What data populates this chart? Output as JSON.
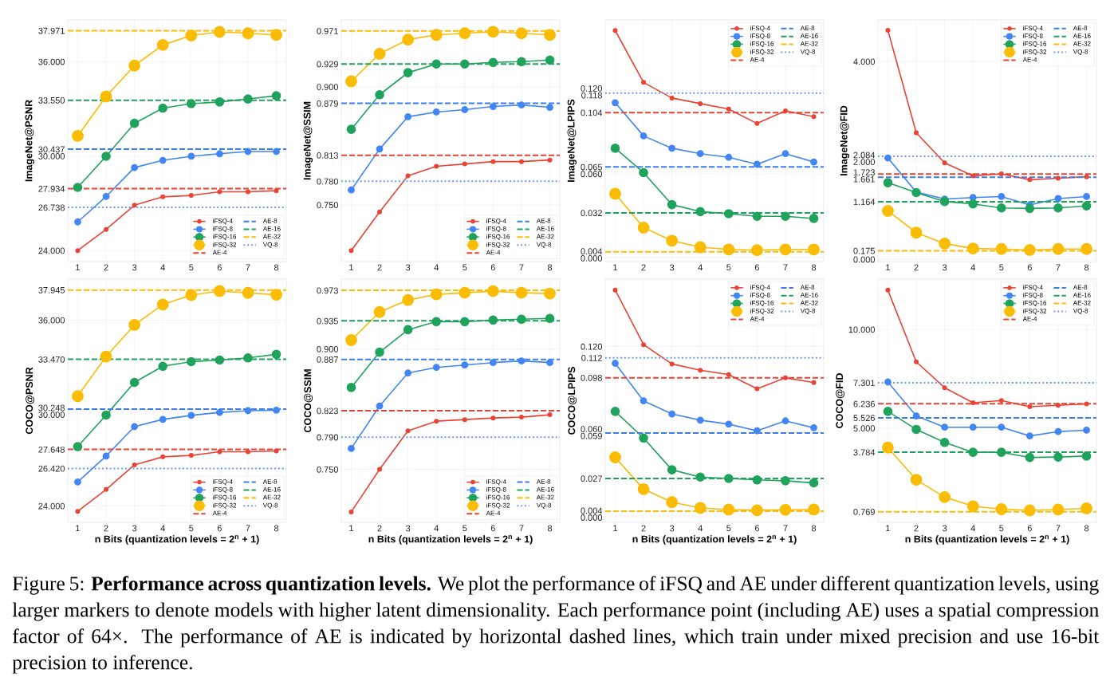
{
  "chart_data": [
    {
      "type": "line",
      "ylabel": "ImageNet@PSNR",
      "x": [
        1,
        2,
        3,
        4,
        5,
        6,
        7,
        8
      ],
      "xlim": [
        0.65,
        8.35
      ],
      "xticks": [
        1,
        2,
        3,
        4,
        5,
        6,
        7,
        8
      ],
      "ylim": [
        23.3,
        38.65
      ],
      "yticks": [
        {
          "value": 24,
          "label": "24.000"
        },
        {
          "value": 26.738,
          "label": "26.738"
        },
        {
          "value": 27.934,
          "label": "27.934"
        },
        {
          "value": 30,
          "label": "30.000"
        },
        {
          "value": 30.437,
          "label": "30.437"
        },
        {
          "value": 33.55,
          "label": "33.550"
        },
        {
          "value": 36,
          "label": "36.000"
        },
        {
          "value": 37.971,
          "label": "37.971"
        }
      ],
      "grid": true,
      "legend": "bottom right",
      "marker": "circle",
      "line_style": "solid",
      "series": [
        {
          "name": "iFSQ-4",
          "color": "#ea4335",
          "values": [
            24.0,
            25.34,
            26.88,
            27.41,
            27.5,
            27.73,
            27.73,
            27.8
          ]
        },
        {
          "name": "iFSQ-8",
          "color": "#4285f4",
          "values": [
            25.82,
            27.43,
            29.27,
            29.73,
            29.99,
            30.15,
            30.29,
            30.29
          ]
        },
        {
          "name": "iFSQ-16",
          "color": "#1fa35c",
          "values": [
            28.01,
            29.99,
            32.08,
            33.05,
            33.33,
            33.44,
            33.63,
            33.83
          ]
        },
        {
          "name": "iFSQ-32",
          "color": "#fbbc05",
          "values": [
            31.28,
            33.79,
            35.75,
            37.06,
            37.66,
            37.89,
            37.8,
            37.7
          ]
        }
      ],
      "ref_lines": [
        {
          "axis": "y",
          "value": 27.934,
          "label": "AE-4",
          "color": "#ea4335",
          "line_style": "dashed"
        },
        {
          "axis": "y",
          "value": 30.437,
          "label": "AE-8",
          "color": "#3b7ded",
          "line_style": "dashed"
        },
        {
          "axis": "y",
          "value": 33.55,
          "label": "AE-16",
          "color": "#1fa35c",
          "line_style": "dashed"
        },
        {
          "axis": "y",
          "value": 37.971,
          "label": "AE-32",
          "color": "#fbbc05",
          "line_style": "dashed"
        },
        {
          "axis": "y",
          "value": 26.738,
          "label": "VQ-8",
          "color": "#5c96f6",
          "line_style": "dotted"
        }
      ]
    },
    {
      "type": "line",
      "ylabel": "ImageNet@SSIM",
      "x": [
        1,
        2,
        3,
        4,
        5,
        6,
        7,
        8
      ],
      "xlim": [
        0.65,
        8.35
      ],
      "xticks": [
        1,
        2,
        3,
        4,
        5,
        6,
        7,
        8
      ],
      "ylim": [
        0.678,
        0.985
      ],
      "yticks": [
        {
          "value": 0.75,
          "label": "0.750"
        },
        {
          "value": 0.78,
          "label": "0.780"
        },
        {
          "value": 0.813,
          "label": "0.813"
        },
        {
          "value": 0.879,
          "label": "0.879"
        },
        {
          "value": 0.9,
          "label": "0.900"
        },
        {
          "value": 0.929,
          "label": "0.929"
        },
        {
          "value": 0.971,
          "label": "0.971"
        }
      ],
      "grid": true,
      "legend": "bottom right",
      "marker": "circle",
      "line_style": "solid",
      "series": [
        {
          "name": "iFSQ-4",
          "color": "#ea4335",
          "values": [
            0.692,
            0.741,
            0.787,
            0.799,
            0.802,
            0.805,
            0.805,
            0.807
          ]
        },
        {
          "name": "iFSQ-8",
          "color": "#4285f4",
          "values": [
            0.769,
            0.821,
            0.862,
            0.868,
            0.871,
            0.875,
            0.877,
            0.874
          ]
        },
        {
          "name": "iFSQ-16",
          "color": "#1fa35c",
          "values": [
            0.846,
            0.89,
            0.918,
            0.929,
            0.929,
            0.931,
            0.932,
            0.934
          ]
        },
        {
          "name": "iFSQ-32",
          "color": "#fbbc05",
          "values": [
            0.907,
            0.942,
            0.96,
            0.966,
            0.968,
            0.97,
            0.968,
            0.966
          ]
        }
      ],
      "ref_lines": [
        {
          "axis": "y",
          "value": 0.813,
          "label": "AE-4",
          "color": "#ea4335",
          "line_style": "dashed"
        },
        {
          "axis": "y",
          "value": 0.879,
          "label": "AE-8",
          "color": "#3b7ded",
          "line_style": "dashed"
        },
        {
          "axis": "y",
          "value": 0.929,
          "label": "AE-16",
          "color": "#1fa35c",
          "line_style": "dashed"
        },
        {
          "axis": "y",
          "value": 0.971,
          "label": "AE-32",
          "color": "#fbbc05",
          "line_style": "dashed"
        },
        {
          "axis": "y",
          "value": 0.78,
          "label": "VQ-8",
          "color": "#5c96f6",
          "line_style": "dotted"
        }
      ]
    },
    {
      "type": "line",
      "ylabel": "ImageNet@LPIPS",
      "x": [
        1,
        2,
        3,
        4,
        5,
        6,
        7,
        8
      ],
      "xlim": [
        0.65,
        8.35
      ],
      "xticks": [
        1,
        2,
        3,
        4,
        5,
        6,
        7,
        8
      ],
      "ylim": [
        -0.003,
        0.1706
      ],
      "yticks": [
        {
          "value": 0,
          "label": "0.000"
        },
        {
          "value": 0.004,
          "label": "0.004"
        },
        {
          "value": 0.032,
          "label": "0.032"
        },
        {
          "value": 0.06,
          "label": "0.060"
        },
        {
          "value": 0.065,
          "label": "0.065"
        },
        {
          "value": 0.104,
          "label": "0.104"
        },
        {
          "value": 0.118,
          "label": "0.118"
        },
        {
          "value": 0.12,
          "label": "0.120"
        }
      ],
      "grid": true,
      "legend": "top right",
      "marker": "circle",
      "line_style": "solid",
      "series": [
        {
          "name": "iFSQ-4",
          "color": "#ea4335",
          "values": [
            0.163,
            0.1257,
            0.1145,
            0.1105,
            0.1066,
            0.0962,
            0.1053,
            0.1011
          ]
        },
        {
          "name": "iFSQ-8",
          "color": "#4285f4",
          "values": [
            0.1111,
            0.0873,
            0.0784,
            0.0745,
            0.0719,
            0.0669,
            0.0745,
            0.0685
          ]
        },
        {
          "name": "iFSQ-16",
          "color": "#1fa35c",
          "values": [
            0.0784,
            0.0609,
            0.0379,
            0.0329,
            0.0314,
            0.0295,
            0.0295,
            0.028
          ]
        },
        {
          "name": "iFSQ-32",
          "color": "#fbbc05",
          "values": [
            0.0457,
            0.0214,
            0.012,
            0.0073,
            0.0057,
            0.0052,
            0.0057,
            0.0057
          ]
        }
      ],
      "ref_lines": [
        {
          "axis": "y",
          "value": 0.104,
          "label": "AE-4",
          "color": "#ea4335",
          "line_style": "dashed"
        },
        {
          "axis": "y",
          "value": 0.065,
          "label": "AE-8",
          "color": "#3b7ded",
          "line_style": "dashed"
        },
        {
          "axis": "y",
          "value": 0.032,
          "label": "AE-16",
          "color": "#1fa35c",
          "line_style": "dashed"
        },
        {
          "axis": "y",
          "value": 0.004,
          "label": "AE-32",
          "color": "#fbbc05",
          "line_style": "dashed"
        },
        {
          "axis": "y",
          "value": 0.118,
          "label": "VQ-8",
          "color": "#5c96f6",
          "line_style": "dotted"
        }
      ]
    },
    {
      "type": "line",
      "ylabel": "ImageNet@FID",
      "x": [
        1,
        2,
        3,
        4,
        5,
        6,
        7,
        8
      ],
      "xlim": [
        0.65,
        8.35
      ],
      "xticks": [
        1,
        2,
        3,
        4,
        5,
        6,
        7,
        8
      ],
      "ylim": [
        -0.044,
        4.84
      ],
      "yticks": [
        {
          "value": 0,
          "label": "0.000"
        },
        {
          "value": 0.175,
          "label": "0.175"
        },
        {
          "value": 1.164,
          "label": "1.164"
        },
        {
          "value": 1.661,
          "label": "1.661"
        },
        {
          "value": 1.723,
          "label": "1.723"
        },
        {
          "value": 2,
          "label": "2.000"
        },
        {
          "value": 2.084,
          "label": "2.084"
        },
        {
          "value": 4,
          "label": "4.000"
        }
      ],
      "grid": true,
      "legend": "top right",
      "marker": "circle",
      "line_style": "solid",
      "series": [
        {
          "name": "iFSQ-4",
          "color": "#ea4335",
          "values": [
            4.63,
            2.56,
            1.95,
            1.69,
            1.73,
            1.61,
            1.64,
            1.67
          ]
        },
        {
          "name": "iFSQ-8",
          "color": "#4285f4",
          "values": [
            2.05,
            1.36,
            1.22,
            1.25,
            1.27,
            1.1,
            1.23,
            1.27
          ]
        },
        {
          "name": "iFSQ-16",
          "color": "#1fa35c",
          "values": [
            1.55,
            1.35,
            1.17,
            1.12,
            1.04,
            1.03,
            1.04,
            1.08
          ]
        },
        {
          "name": "iFSQ-32",
          "color": "#fbbc05",
          "values": [
            0.98,
            0.54,
            0.32,
            0.22,
            0.21,
            0.19,
            0.21,
            0.21
          ]
        }
      ],
      "ref_lines": [
        {
          "axis": "y",
          "value": 1.723,
          "label": "AE-4",
          "color": "#ea4335",
          "line_style": "dashed"
        },
        {
          "axis": "y",
          "value": 1.661,
          "label": "AE-8",
          "color": "#3b7ded",
          "line_style": "dashed"
        },
        {
          "axis": "y",
          "value": 1.164,
          "label": "AE-16",
          "color": "#1fa35c",
          "line_style": "dashed"
        },
        {
          "axis": "y",
          "value": 0.175,
          "label": "AE-32",
          "color": "#fbbc05",
          "line_style": "dashed"
        },
        {
          "axis": "y",
          "value": 2.084,
          "label": "VQ-8",
          "color": "#5c96f6",
          "line_style": "dotted"
        }
      ]
    },
    {
      "type": "line",
      "xlabel": "n Bits (quantization levels = 2$^{n}$ + 1)",
      "ylabel": "COCO@PSNR",
      "x": [
        1,
        2,
        3,
        4,
        5,
        6,
        7,
        8
      ],
      "xlim": [
        0.65,
        8.35
      ],
      "xticks": [
        1,
        2,
        3,
        4,
        5,
        6,
        7,
        8
      ],
      "ylim": [
        22.94,
        38.65
      ],
      "yticks": [
        {
          "value": 24,
          "label": "24.000"
        },
        {
          "value": 26.42,
          "label": "26.420"
        },
        {
          "value": 27.648,
          "label": "27.648"
        },
        {
          "value": 30,
          "label": "30.000"
        },
        {
          "value": 30.248,
          "label": "30.248"
        },
        {
          "value": 33.47,
          "label": "33.470"
        },
        {
          "value": 36,
          "label": "36.000"
        },
        {
          "value": 37.945,
          "label": "37.945"
        }
      ],
      "grid": true,
      "legend": "bottom right",
      "marker": "circle",
      "line_style": "solid",
      "series": [
        {
          "name": "iFSQ-4",
          "color": "#ea4335",
          "values": [
            23.65,
            25.06,
            26.65,
            27.17,
            27.26,
            27.5,
            27.5,
            27.55
          ]
        },
        {
          "name": "iFSQ-8",
          "color": "#4285f4",
          "values": [
            25.55,
            27.22,
            29.12,
            29.59,
            29.85,
            30.04,
            30.15,
            30.18
          ]
        },
        {
          "name": "iFSQ-16",
          "color": "#1fa35c",
          "values": [
            27.83,
            29.87,
            31.98,
            33.02,
            33.32,
            33.42,
            33.56,
            33.79
          ]
        },
        {
          "name": "iFSQ-32",
          "color": "#fbbc05",
          "values": [
            31.09,
            33.65,
            35.69,
            37.01,
            37.62,
            37.88,
            37.76,
            37.64
          ]
        }
      ],
      "ref_lines": [
        {
          "axis": "y",
          "value": 27.648,
          "label": "AE-4",
          "color": "#ea4335",
          "line_style": "dashed"
        },
        {
          "axis": "y",
          "value": 30.248,
          "label": "AE-8",
          "color": "#3b7ded",
          "line_style": "dashed"
        },
        {
          "axis": "y",
          "value": 33.47,
          "label": "AE-16",
          "color": "#1fa35c",
          "line_style": "dashed"
        },
        {
          "axis": "y",
          "value": 37.945,
          "label": "AE-32",
          "color": "#fbbc05",
          "line_style": "dashed"
        },
        {
          "axis": "y",
          "value": 26.42,
          "label": "VQ-8",
          "color": "#5c96f6",
          "line_style": "dotted"
        }
      ]
    },
    {
      "type": "line",
      "xlabel": "n Bits (quantization levels = 2$^{n}$ + 1)",
      "ylabel": "COCO@SSIM",
      "x": [
        1,
        2,
        3,
        4,
        5,
        6,
        7,
        8
      ],
      "xlim": [
        0.65,
        8.35
      ],
      "xticks": [
        1,
        2,
        3,
        4,
        5,
        6,
        7,
        8
      ],
      "ylim": [
        0.684,
        0.987
      ],
      "yticks": [
        {
          "value": 0.75,
          "label": "0.750"
        },
        {
          "value": 0.79,
          "label": "0.790"
        },
        {
          "value": 0.823,
          "label": "0.823"
        },
        {
          "value": 0.887,
          "label": "0.887"
        },
        {
          "value": 0.9,
          "label": "0.900"
        },
        {
          "value": 0.935,
          "label": "0.935"
        },
        {
          "value": 0.973,
          "label": "0.973"
        }
      ],
      "grid": true,
      "legend": "bottom right",
      "marker": "circle",
      "line_style": "solid",
      "series": [
        {
          "name": "iFSQ-4",
          "color": "#ea4335",
          "values": [
            0.697,
            0.75,
            0.798,
            0.81,
            0.812,
            0.814,
            0.815,
            0.818
          ]
        },
        {
          "name": "iFSQ-8",
          "color": "#4285f4",
          "values": [
            0.776,
            0.829,
            0.87,
            0.877,
            0.88,
            0.883,
            0.885,
            0.883
          ]
        },
        {
          "name": "iFSQ-16",
          "color": "#1fa35c",
          "values": [
            0.852,
            0.896,
            0.924,
            0.934,
            0.934,
            0.936,
            0.937,
            0.938
          ]
        },
        {
          "name": "iFSQ-32",
          "color": "#fbbc05",
          "values": [
            0.911,
            0.946,
            0.961,
            0.968,
            0.97,
            0.972,
            0.97,
            0.969
          ]
        }
      ],
      "ref_lines": [
        {
          "axis": "y",
          "value": 0.823,
          "label": "AE-4",
          "color": "#ea4335",
          "line_style": "dashed"
        },
        {
          "axis": "y",
          "value": 0.887,
          "label": "AE-8",
          "color": "#3b7ded",
          "line_style": "dashed"
        },
        {
          "axis": "y",
          "value": 0.935,
          "label": "AE-16",
          "color": "#1fa35c",
          "line_style": "dashed"
        },
        {
          "axis": "y",
          "value": 0.973,
          "label": "AE-32",
          "color": "#fbbc05",
          "line_style": "dashed"
        },
        {
          "axis": "y",
          "value": 0.79,
          "label": "VQ-8",
          "color": "#5c96f6",
          "line_style": "dotted"
        }
      ]
    },
    {
      "type": "line",
      "xlabel": "n Bits (quantization levels = 2$^{n}$ + 1)",
      "ylabel": "COCO@LPIPS",
      "x": [
        1,
        2,
        3,
        4,
        5,
        6,
        7,
        8
      ],
      "xlim": [
        0.65,
        8.35
      ],
      "xticks": [
        1,
        2,
        3,
        4,
        5,
        6,
        7,
        8
      ],
      "ylim": [
        -0.0039,
        0.1675
      ],
      "yticks": [
        {
          "value": 0,
          "label": "0.000"
        },
        {
          "value": 0.004,
          "label": "0.004"
        },
        {
          "value": 0.027,
          "label": "0.027"
        },
        {
          "value": 0.059,
          "label": "0.059"
        },
        {
          "value": 0.06,
          "label": "0.060"
        },
        {
          "value": 0.098,
          "label": "0.098"
        },
        {
          "value": 0.112,
          "label": "0.112"
        },
        {
          "value": 0.12,
          "label": "0.120"
        }
      ],
      "grid": true,
      "legend": "top right",
      "marker": "circle",
      "line_style": "solid",
      "series": [
        {
          "name": "iFSQ-4",
          "color": "#ea4335",
          "values": [
            0.1598,
            0.1213,
            0.1077,
            0.1033,
            0.1002,
            0.0902,
            0.0979,
            0.0946
          ]
        },
        {
          "name": "iFSQ-8",
          "color": "#4285f4",
          "values": [
            0.1082,
            0.0817,
            0.0725,
            0.0681,
            0.0653,
            0.0606,
            0.0676,
            0.0627
          ]
        },
        {
          "name": "iFSQ-16",
          "color": "#1fa35c",
          "values": [
            0.0743,
            0.0555,
            0.0331,
            0.028,
            0.027,
            0.026,
            0.0254,
            0.0239
          ]
        },
        {
          "name": "iFSQ-32",
          "color": "#fbbc05",
          "values": [
            0.0419,
            0.0195,
            0.0103,
            0.0062,
            0.0051,
            0.0046,
            0.0049,
            0.0051
          ]
        }
      ],
      "ref_lines": [
        {
          "axis": "y",
          "value": 0.098,
          "label": "AE-4",
          "color": "#ea4335",
          "line_style": "dashed"
        },
        {
          "axis": "y",
          "value": 0.059,
          "label": "AE-8",
          "color": "#3b7ded",
          "line_style": "dashed"
        },
        {
          "axis": "y",
          "value": 0.027,
          "label": "AE-16",
          "color": "#1fa35c",
          "line_style": "dashed"
        },
        {
          "axis": "y",
          "value": 0.004,
          "label": "AE-32",
          "color": "#fbbc05",
          "line_style": "dashed"
        },
        {
          "axis": "y",
          "value": 0.112,
          "label": "VQ-8",
          "color": "#5c96f6",
          "line_style": "dotted"
        }
      ]
    },
    {
      "type": "line",
      "xlabel": "n Bits (quantization levels = 2$^{n}$ + 1)",
      "ylabel": "COCO@FID",
      "x": [
        1,
        2,
        3,
        4,
        5,
        6,
        7,
        8
      ],
      "xlim": [
        0.65,
        8.35
      ],
      "xticks": [
        1,
        2,
        3,
        4,
        5,
        6,
        7,
        8
      ],
      "ylim": [
        0.234,
        12.55
      ],
      "yticks": [
        {
          "value": 0.769,
          "label": "0.769"
        },
        {
          "value": 3.784,
          "label": "3.784"
        },
        {
          "value": 5,
          "label": "5.000"
        },
        {
          "value": 5.526,
          "label": "5.526"
        },
        {
          "value": 6.236,
          "label": "6.236"
        },
        {
          "value": 7.301,
          "label": "7.301"
        },
        {
          "value": 10,
          "label": "10.000"
        }
      ],
      "grid": true,
      "legend": "top right",
      "marker": "circle",
      "line_style": "solid",
      "series": [
        {
          "name": "iFSQ-4",
          "color": "#ea4335",
          "values": [
            11.99,
            8.36,
            7.05,
            6.29,
            6.4,
            6.09,
            6.16,
            6.23
          ]
        },
        {
          "name": "iFSQ-8",
          "color": "#4285f4",
          "values": [
            7.34,
            5.62,
            5.05,
            5.05,
            5.05,
            4.61,
            4.83,
            4.9
          ]
        },
        {
          "name": "iFSQ-16",
          "color": "#1fa35c",
          "values": [
            5.85,
            4.94,
            4.28,
            3.78,
            3.78,
            3.52,
            3.54,
            3.59
          ]
        },
        {
          "name": "iFSQ-32",
          "color": "#fbbc05",
          "values": [
            4.02,
            2.39,
            1.51,
            1.05,
            0.9,
            0.84,
            0.88,
            0.94
          ]
        }
      ],
      "ref_lines": [
        {
          "axis": "y",
          "value": 6.236,
          "label": "AE-4",
          "color": "#ea4335",
          "line_style": "dashed"
        },
        {
          "axis": "y",
          "value": 5.526,
          "label": "AE-8",
          "color": "#3b7ded",
          "line_style": "dashed"
        },
        {
          "axis": "y",
          "value": 3.784,
          "label": "AE-16",
          "color": "#1fa35c",
          "line_style": "dashed"
        },
        {
          "axis": "y",
          "value": 0.769,
          "label": "AE-32",
          "color": "#fbbc05",
          "line_style": "dashed"
        },
        {
          "axis": "y",
          "value": 7.301,
          "label": "VQ-8",
          "color": "#5c96f6",
          "line_style": "dotted"
        }
      ],
      "annotations": [
        "Figure 5: **Performance across quantization levels.** We plot the performance of iFSQ and AE under different quantization levels, using larger markers to denote models with higher latent dimensionality. Each performance point (including AE) uses a spatial compression factor of 64×. The performance of AE is indicated by horizontal dashed lines, which train under mixed precision and use 16-bit precision to inference."
      ]
    }
  ]
}
